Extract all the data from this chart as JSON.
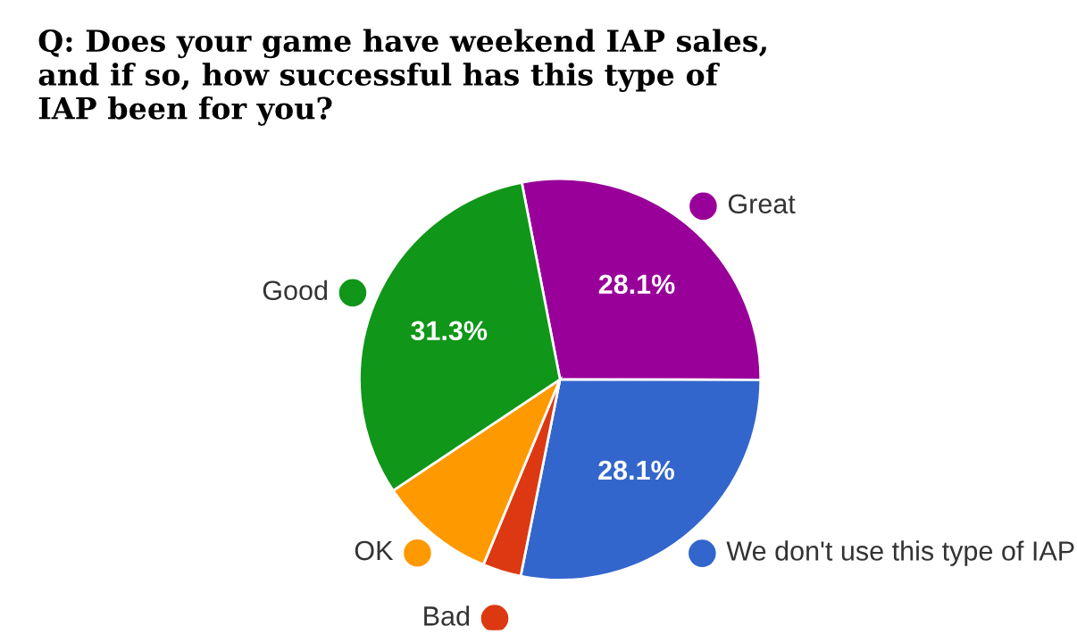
{
  "chart_data": {
    "type": "pie",
    "title": "Q: Does your game have weekend IAP sales, and if so, how successful has this type of IAP been for you?",
    "categories": [
      "Great",
      "We don't use this type of IAP",
      "Bad",
      "OK",
      "Good"
    ],
    "values": [
      28.1,
      28.1,
      3.1,
      9.4,
      31.3
    ],
    "colors": [
      "#990099",
      "#3366cc",
      "#dc3912",
      "#ff9900",
      "#109618"
    ],
    "value_labels": [
      "28.1%",
      "28.1%",
      null,
      null,
      "31.3%"
    ],
    "legend": "bottom left"
  }
}
